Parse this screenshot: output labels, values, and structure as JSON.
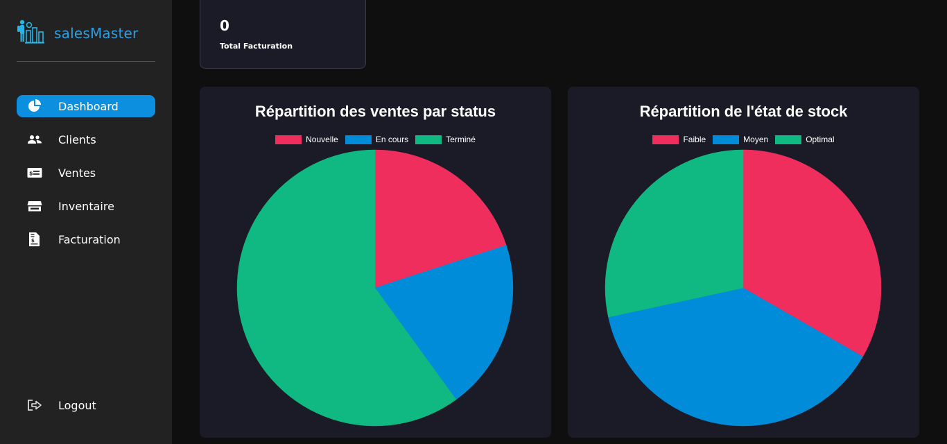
{
  "app": {
    "name": "salesMaster"
  },
  "sidebar": {
    "items": [
      {
        "label": "Dashboard",
        "icon": "pie-chart-icon",
        "active": true
      },
      {
        "label": "Clients",
        "icon": "users-icon",
        "active": false
      },
      {
        "label": "Ventes",
        "icon": "money-bill-icon",
        "active": false
      },
      {
        "label": "Inventaire",
        "icon": "store-icon",
        "active": false
      },
      {
        "label": "Facturation",
        "icon": "invoice-icon",
        "active": false
      }
    ],
    "logout": {
      "label": "Logout",
      "icon": "logout-icon"
    }
  },
  "stats": {
    "value": "0",
    "label": "Total Facturation"
  },
  "colors": {
    "accent": "#0b8fde",
    "red": "#f02e5e",
    "blue": "#008cd9",
    "green": "#10b981"
  },
  "chart_data": [
    {
      "type": "pie",
      "title": "Répartition des ventes par status",
      "categories": [
        "Nouvelle",
        "En cours",
        "Terminé"
      ],
      "values": [
        20,
        20,
        60
      ],
      "colors": [
        "#f02e5e",
        "#008cd9",
        "#10b981"
      ],
      "legend": "top"
    },
    {
      "type": "pie",
      "title": "Répartition de l'état de stock",
      "categories": [
        "Faible",
        "Moyen",
        "Optimal"
      ],
      "values": [
        33.3,
        38.3,
        28.4
      ],
      "colors": [
        "#f02e5e",
        "#008cd9",
        "#10b981"
      ],
      "legend": "top"
    }
  ]
}
